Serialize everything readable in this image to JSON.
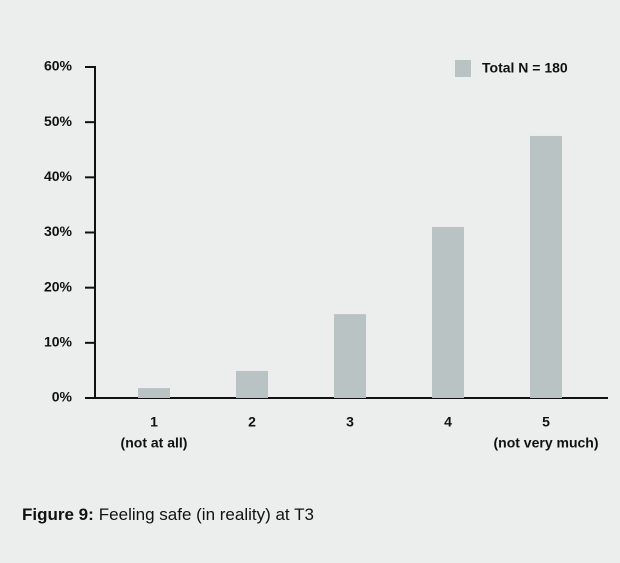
{
  "chart_data": {
    "type": "bar",
    "categories": [
      "1",
      "2",
      "3",
      "4",
      "5"
    ],
    "category_notes": [
      "(not at all)",
      null,
      null,
      null,
      "(not very much)"
    ],
    "series": [
      {
        "name": "Total N = 180",
        "color": "#b9c3c3",
        "values": [
          1.8,
          4.9,
          15.2,
          31,
          47.5
        ]
      }
    ],
    "ylim": [
      0,
      60
    ],
    "yticks": [
      {
        "value": 0,
        "label": "0%"
      },
      {
        "value": 10,
        "label": "10%"
      },
      {
        "value": 20,
        "label": "20%"
      },
      {
        "value": 30,
        "label": "30%"
      },
      {
        "value": 40,
        "label": "40%"
      },
      {
        "value": 50,
        "label": "50%"
      },
      {
        "value": 60,
        "label": "60%"
      }
    ],
    "legend": "upper right",
    "caption_label": "Figure 9:",
    "caption": "Feeling safe (in reality) at T3"
  }
}
